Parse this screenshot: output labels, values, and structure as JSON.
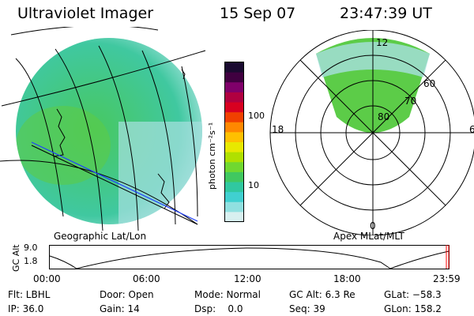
{
  "header": {
    "instrument": "Ultraviolet Imager",
    "date": "15 Sep 07",
    "time": "23:47:39 UT"
  },
  "geo_panel": {
    "caption": "Geographic Lat/Lon"
  },
  "polar_panel": {
    "caption": "Apex MLat/MLT",
    "mlt_labels": {
      "top": "12",
      "left": "18",
      "right": "6",
      "bottom": "0"
    },
    "lat_labels": [
      "60",
      "70",
      "80"
    ]
  },
  "colorbar": {
    "unit": "photon cm⁻²s⁻¹",
    "ticks": [
      "100",
      "10"
    ],
    "colors": [
      "#1a0a30",
      "#400040",
      "#80006a",
      "#b00040",
      "#d80020",
      "#f04000",
      "#ff8800",
      "#ffc000",
      "#e8e800",
      "#b0e000",
      "#70d830",
      "#40c860",
      "#30c8a0",
      "#40d0d0",
      "#90e0e0",
      "#d8f0f0"
    ]
  },
  "altitude_strip": {
    "axis_label": "GC Alt",
    "y_ticks": [
      "9.0",
      "1.8"
    ],
    "x_ticks": [
      "00:00",
      "06:00",
      "12:00",
      "18:00",
      "23:59"
    ]
  },
  "status": {
    "filter": "Flt: LBHL",
    "door": "Door: Open",
    "mode": "Mode: Normal",
    "gc_alt": "GC Alt: 6.3 Re",
    "glat": "GLat: −58.3",
    "ip": "IP: 36.0",
    "gain": "Gain: 14",
    "dsp": "Dsp:    0.0",
    "seq": "Seq: 39",
    "glon": "GLon: 158.2"
  },
  "palette": {
    "aurora": "#50d060",
    "coast": "#000000",
    "track": "#2040ff"
  }
}
